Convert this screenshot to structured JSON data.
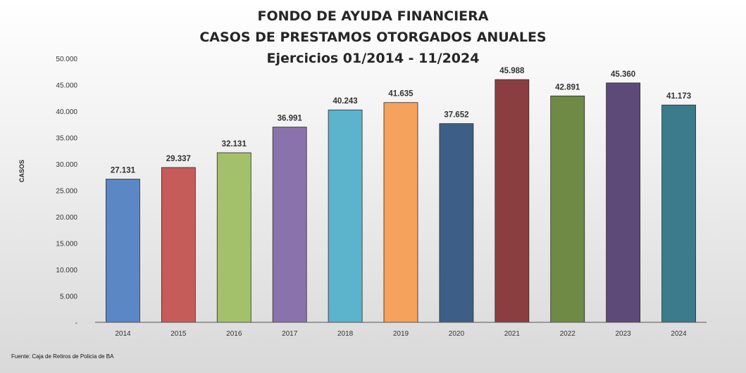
{
  "chart_data": {
    "type": "bar",
    "title_lines": [
      "FONDO DE AYUDA FINANCIERA",
      "CASOS DE PRESTAMOS OTORGADOS ANUALES",
      "Ejercicios 01/2014 - 11/2024"
    ],
    "xlabel": "",
    "ylabel": "CASOS",
    "categories": [
      "2014",
      "2015",
      "2016",
      "2017",
      "2018",
      "2019",
      "2020",
      "2021",
      "2022",
      "2023",
      "2024"
    ],
    "values": [
      27131,
      29337,
      32131,
      36991,
      40243,
      41635,
      37652,
      45988,
      42891,
      45360,
      41173
    ],
    "value_labels": [
      "27.131",
      "29.337",
      "32.131",
      "36.991",
      "40.243",
      "41.635",
      "37.652",
      "45.988",
      "42.891",
      "45.360",
      "41.173"
    ],
    "ylim": [
      0,
      50000
    ],
    "yticks": [
      0,
      5000,
      10000,
      15000,
      20000,
      25000,
      30000,
      35000,
      40000,
      45000,
      50000
    ],
    "ytick_labels": [
      "-",
      "5.000",
      "10.000",
      "15.000",
      "20.000",
      "25.000",
      "30.000",
      "35.000",
      "40.000",
      "45.000",
      "50.000"
    ],
    "colors": [
      "#5b87c5",
      "#c55c5a",
      "#a3c16a",
      "#8a72ad",
      "#5cb3cc",
      "#f4a25c",
      "#3e5f85",
      "#8b3e3f",
      "#6e8a45",
      "#5d4a78",
      "#3b7b8c"
    ],
    "grid": false,
    "legend": "none"
  },
  "source_note": "Fuente: Caja de Retiros de Policia de BA"
}
